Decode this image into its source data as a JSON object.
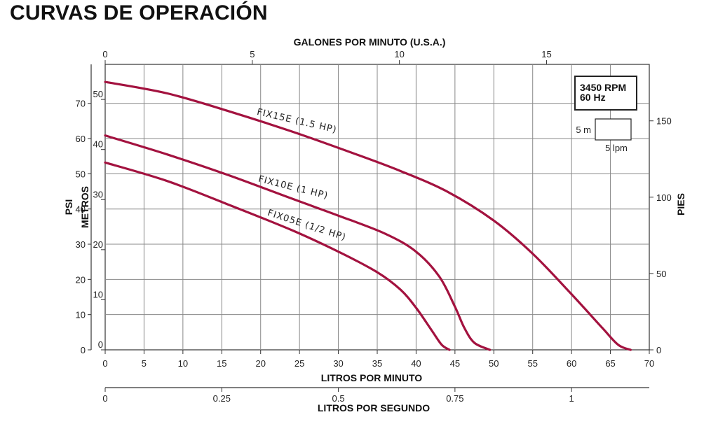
{
  "title": "CURVAS DE OPERACIÓN",
  "colors": {
    "curve": "#a3123f",
    "grid": "#888888"
  },
  "chart_data": {
    "type": "line",
    "x": {
      "label": "LITROS POR MINUTO",
      "range": [
        0,
        70
      ],
      "ticks": [
        "0",
        "5",
        "10",
        "15",
        "20",
        "25",
        "30",
        "35",
        "40",
        "45",
        "50",
        "55",
        "60",
        "65",
        "70"
      ]
    },
    "x_top": {
      "label": "GALONES POR MINUTO (U.S.A.)",
      "ticks": [
        "0",
        "5",
        "10",
        "15"
      ]
    },
    "x_bottom2": {
      "label": "LITROS POR SEGUNDO",
      "ticks": [
        "0",
        "0.25",
        "0.5",
        "0.75",
        "1"
      ]
    },
    "y_left_psi": {
      "label": "PSI",
      "ticks": [
        "0",
        "10",
        "20",
        "30",
        "40",
        "50",
        "60",
        "70"
      ]
    },
    "y_left_metros": {
      "label": "METROS",
      "range": [
        0,
        57
      ],
      "ticks": [
        "0",
        "10",
        "20",
        "30",
        "40",
        "50"
      ]
    },
    "y_right_pies": {
      "label": "PIES",
      "ticks": [
        "0",
        "50",
        "100",
        "150"
      ]
    },
    "grid": true,
    "info_box": {
      "line1": "3450 RPM",
      "line2": "60 Hz"
    },
    "scale_box": {
      "v": "5 m",
      "h": "5 lpm"
    },
    "series": [
      {
        "name": "FIX15E (1.5 HP)",
        "x": [
          0,
          8,
          16,
          24,
          32,
          38,
          44,
          50,
          55,
          60,
          64,
          66,
          67.6
        ],
        "y": [
          53.5,
          51.2,
          47.6,
          43.6,
          39.2,
          35.7,
          31.6,
          25.8,
          19.2,
          11.1,
          4.3,
          1.0,
          0
        ]
      },
      {
        "name": "FIX10E (1 HP)",
        "x": [
          0,
          8,
          16,
          24,
          30,
          36,
          40,
          43,
          45,
          46.2,
          47.5,
          49.5
        ],
        "y": [
          42.8,
          39.0,
          34.8,
          30.2,
          26.8,
          23.2,
          19.6,
          14.6,
          8.6,
          4.4,
          1.4,
          0
        ]
      },
      {
        "name": "FIX05E (1/2 HP)",
        "x": [
          0,
          8,
          16,
          24,
          30,
          35,
          38,
          40,
          42,
          43.3,
          44.3
        ],
        "y": [
          37.4,
          33.7,
          28.9,
          23.9,
          19.6,
          15.5,
          12.0,
          8.4,
          3.9,
          1.0,
          0
        ]
      }
    ]
  }
}
